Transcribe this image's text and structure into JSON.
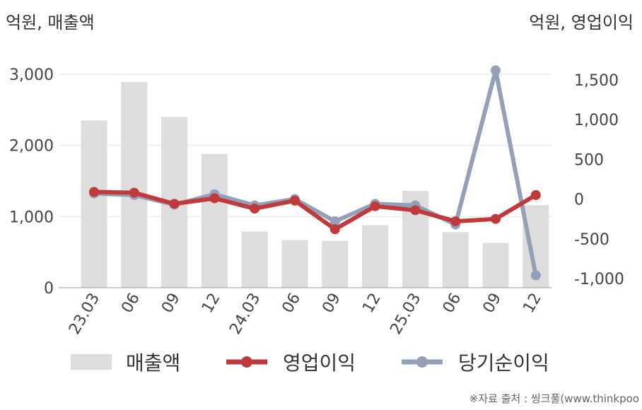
{
  "unit_left": "억원, 매출액",
  "unit_right": "억원, 영업이익",
  "source": "※자료 출처 : 씽크풀(www.thinkpoo",
  "legend": [
    {
      "label": "매출액",
      "kind": "bar",
      "color": "#dddddd"
    },
    {
      "label": "영업이익",
      "kind": "line",
      "color": "#c0393b"
    },
    {
      "label": "당기순이익",
      "kind": "line",
      "color": "#94a0b8"
    }
  ],
  "chart_data": {
    "type": "bar",
    "categories": [
      "23.03",
      "06",
      "09",
      "12",
      "24.03",
      "06",
      "09",
      "12",
      "25.03",
      "06",
      "09",
      "12"
    ],
    "left_axis": {
      "ticks": [
        "0",
        "1,000",
        "2,000",
        "3,000"
      ],
      "ylim": [
        0,
        3000
      ]
    },
    "right_axis": {
      "ticks": [
        "-1,000",
        "-500",
        "0",
        "500",
        "1,000",
        "1,500"
      ],
      "ylim": [
        -1000,
        1500
      ]
    },
    "series": [
      {
        "name": "매출액",
        "type": "bar",
        "axis": "left",
        "color": "#dddddd",
        "values": [
          2350,
          2890,
          2400,
          1880,
          790,
          670,
          660,
          880,
          1360,
          780,
          630,
          1160
        ]
      },
      {
        "name": "영업이익",
        "type": "line",
        "axis": "right",
        "color": "#c0393b",
        "values": [
          90,
          80,
          -60,
          10,
          -120,
          -20,
          -380,
          -90,
          -140,
          -280,
          -250,
          50
        ]
      },
      {
        "name": "당기순이익",
        "type": "line",
        "axis": "right",
        "color": "#94a0b8",
        "values": [
          70,
          50,
          -70,
          60,
          -80,
          0,
          -280,
          -60,
          -80,
          -320,
          1620,
          -960
        ]
      }
    ],
    "grid": true
  }
}
